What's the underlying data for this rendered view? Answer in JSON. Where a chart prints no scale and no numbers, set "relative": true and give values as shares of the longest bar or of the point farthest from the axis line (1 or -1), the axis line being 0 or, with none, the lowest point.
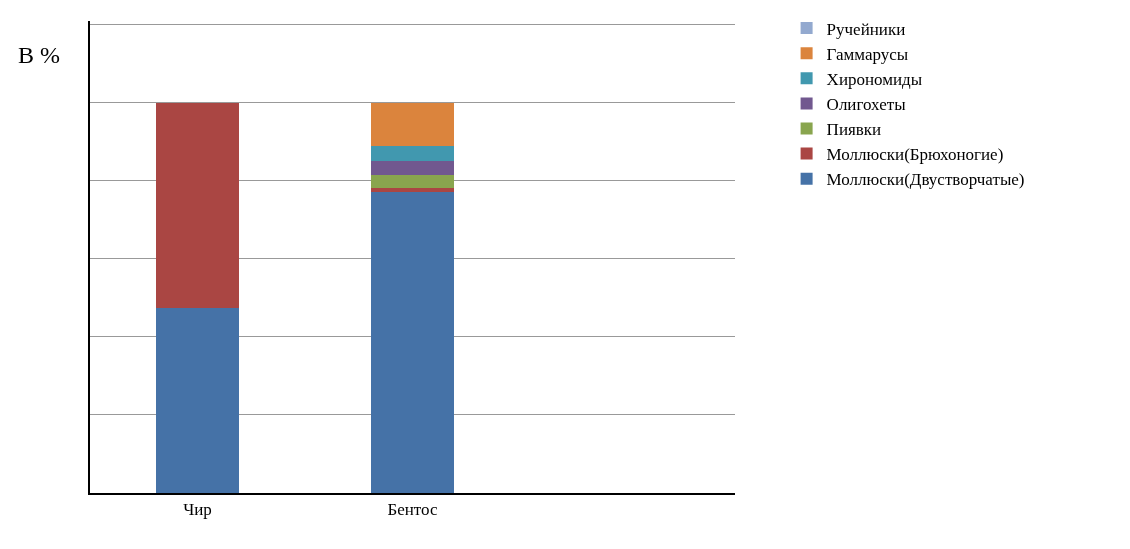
{
  "chart_data": {
    "type": "bar",
    "stacked": true,
    "relative": true,
    "ylabel": "В %",
    "categories": [
      "Чир",
      "Бентос"
    ],
    "series": [
      {
        "name": "Моллюски(Двустворчатые)",
        "color": "#4572a7",
        "values": [
          0.473,
          0.771
        ]
      },
      {
        "name": "Моллюски(Брюхоногие)",
        "color": "#aa4643",
        "values": [
          0.527,
          0.01
        ]
      },
      {
        "name": "Пиявки",
        "color": "#89a54e",
        "values": [
          null,
          0.033
        ]
      },
      {
        "name": "Олигохеты",
        "color": "#71588f",
        "values": [
          null,
          0.038
        ]
      },
      {
        "name": "Хирономиды",
        "color": "#4198af",
        "values": [
          null,
          0.038
        ]
      },
      {
        "name": "Гаммарусы",
        "color": "#db843d",
        "values": [
          null,
          0.11
        ]
      },
      {
        "name": "Ручейники",
        "color": "#93a9cf",
        "values": [
          null,
          null
        ]
      }
    ],
    "grid": "y",
    "legend": "right"
  }
}
